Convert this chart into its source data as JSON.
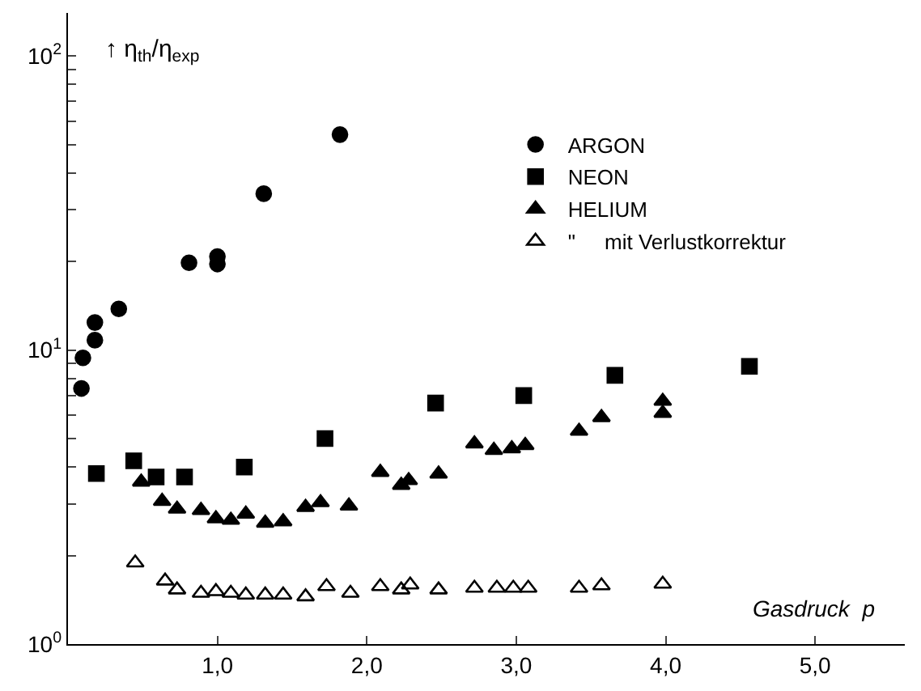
{
  "chart_data": {
    "type": "scatter",
    "xlabel": "Gasdruck  p",
    "ylabel": "↑ η$_{th}$/η$_{exp}$",
    "series": [
      {
        "name": "ARGON",
        "color": "#000000",
        "marker": "circle",
        "x": [
          0.09,
          0.1,
          0.18,
          0.18,
          0.34,
          0.81,
          1.0,
          1.0,
          1.31,
          1.82
        ],
        "values": [
          7.4,
          9.4,
          10.8,
          12.4,
          13.8,
          19.8,
          19.6,
          20.8,
          34,
          54
        ]
      },
      {
        "name": "NEON",
        "color": "#000000",
        "marker": "square",
        "x": [
          0.19,
          0.44,
          0.59,
          0.78,
          1.18,
          1.72,
          2.46,
          3.05,
          3.66,
          4.56
        ],
        "values": [
          3.8,
          4.2,
          3.7,
          3.7,
          4.0,
          5.0,
          6.6,
          7.0,
          8.2,
          8.8
        ]
      },
      {
        "name": "HELIUM",
        "color": "#000000",
        "marker": "triangle",
        "x": [
          0.49,
          0.63,
          0.73,
          0.89,
          0.99,
          1.09,
          1.19,
          1.32,
          1.44,
          1.59,
          1.69,
          1.88,
          2.09,
          2.23,
          2.28,
          2.48,
          2.72,
          2.85,
          2.97,
          3.06,
          3.42,
          3.57,
          3.98,
          3.98
        ],
        "values": [
          3.56,
          3.06,
          2.88,
          2.85,
          2.67,
          2.64,
          2.77,
          2.58,
          2.61,
          2.92,
          3.03,
          2.95,
          3.84,
          3.47,
          3.6,
          3.79,
          4.8,
          4.56,
          4.62,
          4.74,
          5.3,
          5.9,
          6.7,
          6.1
        ]
      },
      {
        "name": "\"     mit Verlustkorrektur",
        "color": "#000000",
        "marker": "triangle-open",
        "x": [
          0.45,
          0.65,
          0.73,
          0.89,
          0.99,
          1.09,
          1.19,
          1.32,
          1.44,
          1.59,
          1.73,
          1.89,
          2.09,
          2.23,
          2.29,
          2.48,
          2.72,
          2.87,
          2.98,
          3.08,
          3.42,
          3.57,
          3.98
        ],
        "values": [
          1.89,
          1.64,
          1.53,
          1.49,
          1.51,
          1.49,
          1.47,
          1.47,
          1.47,
          1.45,
          1.57,
          1.49,
          1.57,
          1.53,
          1.59,
          1.53,
          1.55,
          1.55,
          1.55,
          1.55,
          1.55,
          1.58,
          1.6
        ]
      }
    ],
    "xlim": [
      0,
      5.6
    ],
    "xticks": [
      {
        "value": 1,
        "label": "1,0"
      },
      {
        "value": 2,
        "label": "2,0"
      },
      {
        "value": 3,
        "label": "3,0"
      },
      {
        "value": 4,
        "label": "4,0"
      },
      {
        "value": 5,
        "label": "5,0"
      }
    ],
    "ylim": [
      1,
      140
    ],
    "log": true,
    "yticks": [
      {
        "value": 1,
        "label": "10$^{0}$"
      },
      {
        "value": 2,
        "label": null
      },
      {
        "value": 3,
        "label": null
      },
      {
        "value": 4,
        "label": null
      },
      {
        "value": 5,
        "label": null
      },
      {
        "value": 6,
        "label": null
      },
      {
        "value": 7,
        "label": null
      },
      {
        "value": 8,
        "label": null
      },
      {
        "value": 9,
        "label": null
      },
      {
        "value": 10,
        "label": "10$^{1}$"
      },
      {
        "value": 20,
        "label": null
      },
      {
        "value": 30,
        "label": null
      },
      {
        "value": 40,
        "label": null
      },
      {
        "value": 50,
        "label": null
      },
      {
        "value": 60,
        "label": null
      },
      {
        "value": 70,
        "label": null
      },
      {
        "value": 80,
        "label": null
      },
      {
        "value": 90,
        "label": null
      },
      {
        "value": 100,
        "label": "10$^{2}$"
      }
    ],
    "legend": "top right"
  }
}
